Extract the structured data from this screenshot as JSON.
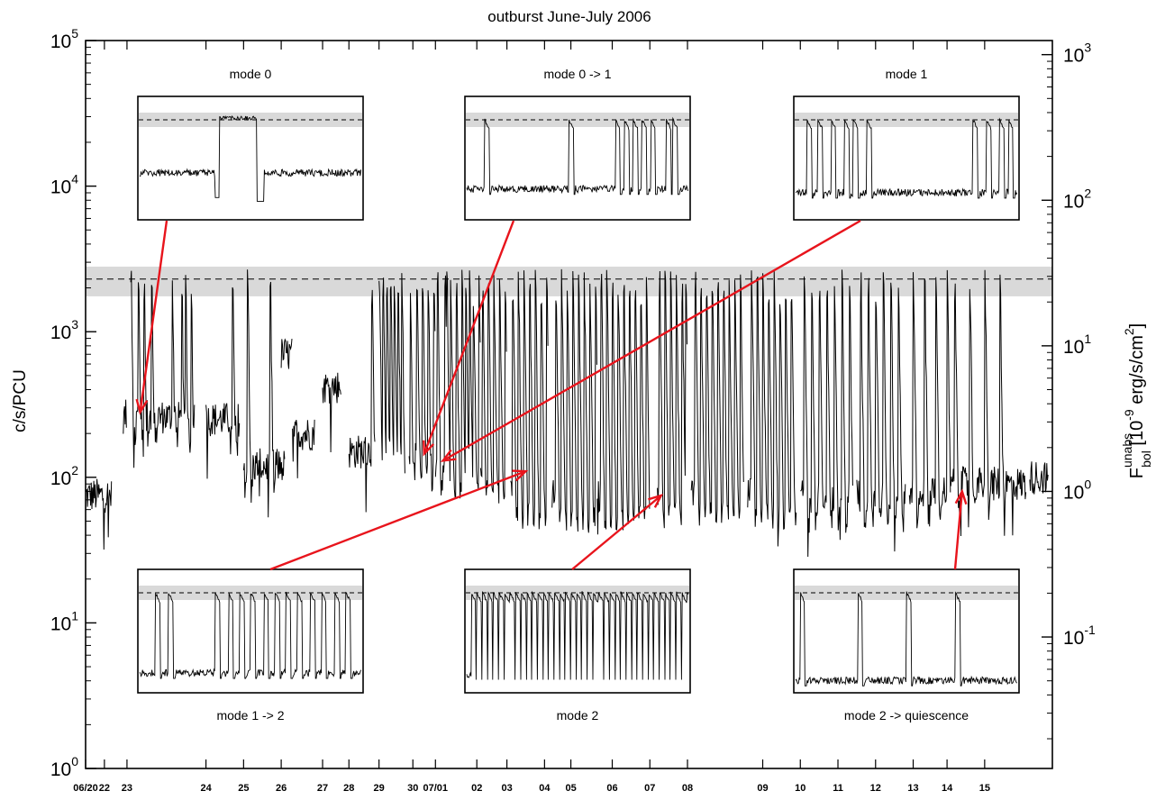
{
  "chart_data": {
    "type": "line",
    "title": "outburst June-July 2006",
    "ylabel": "c/s/PCU",
    "y2label": {
      "base": "F",
      "sup": "unabs",
      "sub": "bol",
      "rest_prefix": " [10",
      "rest_exp": "-9",
      "rest_mid": " erg/s/cm",
      "rest_exp2": "2",
      "rest_end": "]"
    },
    "y_scale": "log",
    "ylim": [
      1,
      100000
    ],
    "y2lim": [
      0.0125,
      1250
    ],
    "y_ticks": [
      {
        "base": "10",
        "exp": "0",
        "value": 1
      },
      {
        "base": "10",
        "exp": "1",
        "value": 10
      },
      {
        "base": "10",
        "exp": "2",
        "value": 100
      },
      {
        "base": "10",
        "exp": "3",
        "value": 1000
      },
      {
        "base": "10",
        "exp": "4",
        "value": 10000
      },
      {
        "base": "10",
        "exp": "5",
        "value": 100000
      }
    ],
    "y2_ticks": [
      {
        "base": "10",
        "exp": "-1",
        "value": 0.1
      },
      {
        "base": "10",
        "exp": "0",
        "value": 1
      },
      {
        "base": "10",
        "exp": "1",
        "value": 10
      },
      {
        "base": "10",
        "exp": "2",
        "value": 100
      },
      {
        "base": "10",
        "exp": "3",
        "value": 1000
      }
    ],
    "x_tick_labels": [
      "06/20",
      "22",
      "23",
      "24",
      "25",
      "26",
      "27",
      "28",
      "29",
      "30",
      "07/01",
      "02",
      "03",
      "04",
      "05",
      "06",
      "07",
      "08",
      "09",
      "10",
      "11",
      "12",
      "13",
      "14",
      "15"
    ],
    "x_tick_days": [
      0,
      0.5,
      1.1,
      3.2,
      4.2,
      5.2,
      6.3,
      7.0,
      7.8,
      8.7,
      9.3,
      10.4,
      11.2,
      12.2,
      12.9,
      14.0,
      15.0,
      16.0,
      18.0,
      19.0,
      20.0,
      21.0,
      22.0,
      22.9,
      23.9
    ],
    "x_range_days": [
      0,
      25.7
    ],
    "threshold": {
      "level": 2300,
      "band": [
        1750,
        2800
      ],
      "style": "dashed"
    },
    "light_curve_segments": [
      {
        "day_start": 0.0,
        "day_end": 0.7,
        "level": 75,
        "flares": []
      },
      {
        "day_start": 1.0,
        "day_end": 1.1,
        "level": 260,
        "flares": []
      },
      {
        "day_start": 1.2,
        "day_end": 2.9,
        "level": 260,
        "flares": [
          1.2,
          1.4,
          1.55,
          1.75,
          2.3,
          2.55,
          2.65,
          2.8
        ]
      },
      {
        "day_start": 3.2,
        "day_end": 4.1,
        "level": 250,
        "flares": [
          3.9
        ]
      },
      {
        "day_start": 4.2,
        "day_end": 5.3,
        "level": 120,
        "flares": [
          4.3,
          4.9
        ]
      },
      {
        "day_start": 5.2,
        "day_end": 5.5,
        "level": 700,
        "flares": []
      },
      {
        "day_start": 5.5,
        "day_end": 6.1,
        "level": 200,
        "flares": []
      },
      {
        "day_start": 6.3,
        "day_end": 6.8,
        "level": 420,
        "flares": []
      },
      {
        "day_start": 7.0,
        "day_end": 7.7,
        "level": 150,
        "flares": [
          7.6
        ]
      },
      {
        "day_start": 7.8,
        "day_end": 8.5,
        "level": 140,
        "flares": [
          7.8,
          7.9,
          8.0,
          8.1,
          8.2,
          8.3,
          8.4
        ]
      },
      {
        "day_start": 8.6,
        "day_end": 9.3,
        "level": 150,
        "flares": [
          8.62,
          8.8,
          8.95,
          9.1,
          9.25
        ]
      },
      {
        "day_start": 9.3,
        "day_end": 10.5,
        "level": 120,
        "flares": [
          9.35,
          9.55,
          9.6,
          9.7,
          9.85,
          10.0,
          10.1,
          10.2,
          10.3,
          10.45
        ]
      },
      {
        "day_start": 10.5,
        "day_end": 11.2,
        "level": 120,
        "flares": [
          10.55,
          10.7,
          10.85,
          11.0,
          11.15
        ]
      },
      {
        "day_start": 11.3,
        "day_end": 12.3,
        "level": 80,
        "flares": [
          11.35,
          11.5,
          11.65,
          11.8,
          11.95,
          12.1,
          12.25
        ]
      },
      {
        "day_start": 12.4,
        "day_end": 13.6,
        "level": 75,
        "flares": [
          12.5,
          12.65,
          12.8,
          12.95,
          13.1,
          13.25,
          13.4,
          13.55
        ]
      },
      {
        "day_start": 13.6,
        "day_end": 15.0,
        "level": 75,
        "flares": [
          13.7,
          13.85,
          14.0,
          14.15,
          14.3,
          14.45,
          14.6,
          14.75,
          14.9
        ]
      },
      {
        "day_start": 15.2,
        "day_end": 16.0,
        "level": 80,
        "flares": [
          15.25,
          15.4,
          15.55,
          15.7,
          15.85,
          15.95
        ]
      },
      {
        "day_start": 16.1,
        "day_end": 17.5,
        "level": 80,
        "flares": [
          16.2,
          16.35,
          16.5,
          16.65,
          16.8,
          16.95,
          17.1,
          17.25,
          17.4
        ]
      },
      {
        "day_start": 17.6,
        "day_end": 18.9,
        "level": 80,
        "flares": [
          17.7,
          17.85,
          18.0,
          18.15,
          18.3,
          18.45,
          18.6,
          18.75
        ]
      },
      {
        "day_start": 19.0,
        "day_end": 20.4,
        "level": 75,
        "flares": [
          19.1,
          19.3,
          19.5,
          19.7,
          19.9,
          20.1,
          20.3
        ]
      },
      {
        "day_start": 20.5,
        "day_end": 21.8,
        "level": 75,
        "flares": [
          20.6,
          20.8,
          21.0,
          21.2,
          21.4,
          21.6
        ]
      },
      {
        "day_start": 21.9,
        "day_end": 23.0,
        "level": 80,
        "flares": [
          22.0,
          22.3,
          22.6,
          22.9
        ]
      },
      {
        "day_start": 23.0,
        "day_end": 25.0,
        "level": 90,
        "flares": [
          23.1,
          23.5,
          23.9,
          24.3
        ]
      },
      {
        "day_start": 25.1,
        "day_end": 25.6,
        "level": 100,
        "flares": []
      }
    ],
    "insets": [
      {
        "label": "mode 0",
        "label_pos": "top",
        "pattern": "mode0",
        "arrow_to_day": 1.45,
        "arrow_to_count": 280
      },
      {
        "label": "mode 0 -> 1",
        "label_pos": "top",
        "pattern": "mode01",
        "arrow_to_day": 9.0,
        "arrow_to_count": 145
      },
      {
        "label": "mode 1",
        "label_pos": "top",
        "pattern": "mode1",
        "arrow_to_day": 9.5,
        "arrow_to_count": 130
      },
      {
        "label": "mode 1 -> 2",
        "label_pos": "bottom",
        "pattern": "mode12",
        "arrow_to_day": 11.7,
        "arrow_to_count": 110
      },
      {
        "label": "mode 2",
        "label_pos": "bottom",
        "pattern": "mode2",
        "arrow_to_day": 15.3,
        "arrow_to_count": 75
      },
      {
        "label": "mode 2 -> quiescence",
        "label_pos": "bottom",
        "pattern": "mode2q",
        "arrow_to_day": 23.3,
        "arrow_to_count": 80
      }
    ],
    "colors": {
      "curve": "#000000",
      "band": "#d9d9d9",
      "arrow": "#e8141c"
    },
    "grid": false
  }
}
